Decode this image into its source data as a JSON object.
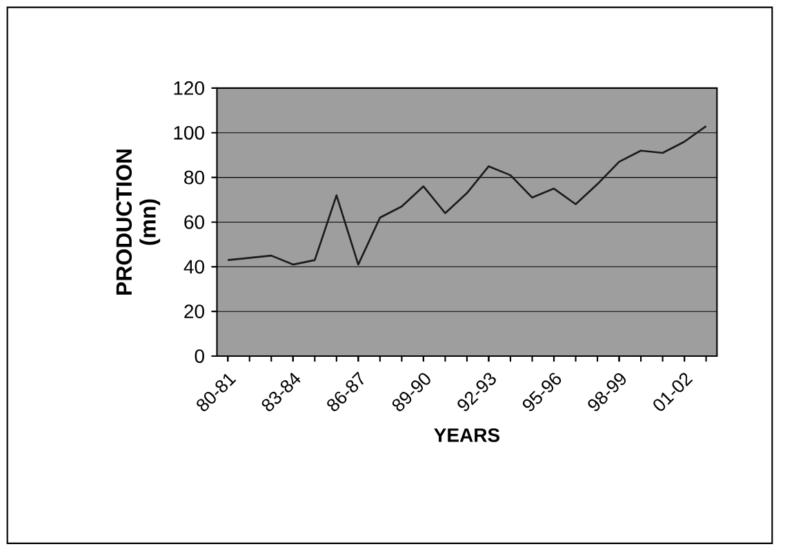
{
  "chart_data": {
    "type": "line",
    "xlabel": "YEARS",
    "ylabel": "PRODUCTION (mn)",
    "categories": [
      "80-81",
      null,
      null,
      "83-84",
      null,
      null,
      "86-87",
      null,
      null,
      "89-90",
      null,
      null,
      "92-93",
      null,
      null,
      "95-96",
      null,
      null,
      "98-99",
      null,
      null,
      "01-02",
      null
    ],
    "series": [
      {
        "color": "#1a1a1a",
        "values": [
          43,
          44,
          45,
          41,
          43,
          72,
          41,
          62,
          67,
          76,
          64,
          73,
          85,
          81,
          71,
          75,
          68,
          77,
          87,
          92,
          91,
          96,
          103
        ]
      }
    ],
    "ylim": [
      0,
      120
    ],
    "yticks": [
      0,
      20,
      40,
      60,
      80,
      100,
      120
    ],
    "grid": "y",
    "marker": "none",
    "line_style": "solid"
  }
}
